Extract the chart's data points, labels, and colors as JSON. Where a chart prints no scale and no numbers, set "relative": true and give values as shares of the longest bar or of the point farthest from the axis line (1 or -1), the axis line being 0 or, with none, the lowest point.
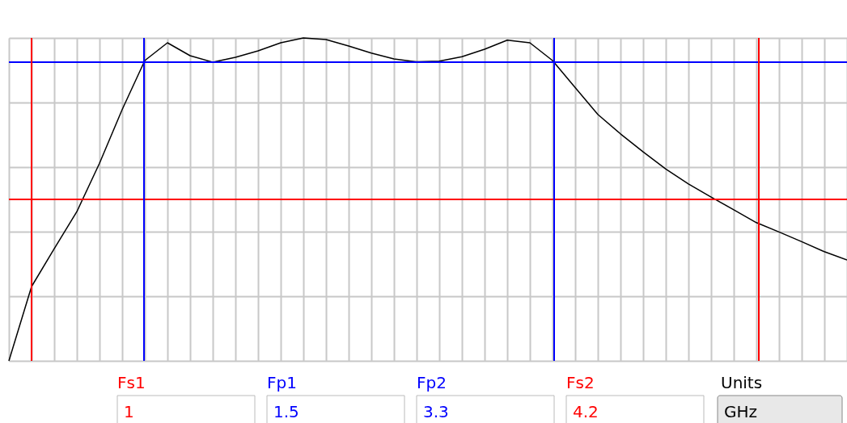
{
  "chart_data": {
    "type": "line",
    "relative": true,
    "grid": true,
    "marker": "none",
    "line_style": "solid",
    "categories": [
      null,
      null,
      null,
      null,
      null,
      null,
      null,
      null,
      null,
      null,
      null,
      null,
      null,
      null,
      null,
      null,
      null,
      null,
      null,
      null,
      null,
      null,
      null,
      null,
      null,
      null,
      null,
      null,
      null,
      null,
      null,
      null,
      null,
      null,
      null,
      null,
      null,
      null
    ],
    "series": [
      {
        "color": "#000000",
        "values": [
          0,
          0.23,
          0.347,
          0.462,
          0.612,
          0.778,
          0.93,
          0.985,
          0.945,
          0.925,
          0.94,
          0.96,
          0.985,
          1,
          0.995,
          0.975,
          0.953,
          0.935,
          0.926,
          0.928,
          0.942,
          0.965,
          0.993,
          0.985,
          0.93,
          0.846,
          0.763,
          0.703,
          0.647,
          0.594,
          0.548,
          0.507,
          0.468,
          0.428,
          0.399,
          0.369,
          0.338,
          0.3125
        ]
      }
    ],
    "ref_lines": [
      {
        "axis": "y",
        "value": 0.925,
        "color": "#0000ff"
      },
      {
        "axis": "y",
        "value": 0.5,
        "color": "#ff0000"
      }
    ],
    "annotations": [
      "Fs1",
      "1",
      "Fp1",
      "1.5",
      "Fp2",
      "3.3",
      "Fs2",
      "4.2",
      "Units",
      "GHz"
    ]
  }
}
